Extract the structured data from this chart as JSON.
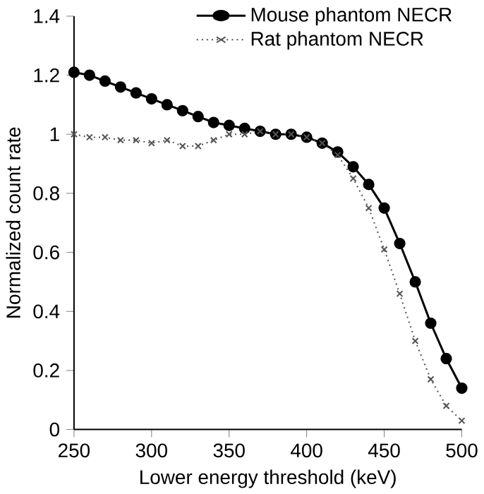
{
  "chart_data": {
    "type": "line",
    "xlabel": "Lower energy threshold (keV)",
    "ylabel": "Normalized count rate",
    "x": [
      250,
      260,
      270,
      280,
      290,
      300,
      310,
      320,
      330,
      340,
      350,
      360,
      370,
      380,
      390,
      400,
      410,
      420,
      430,
      440,
      450,
      460,
      470,
      480,
      490,
      500
    ],
    "series": [
      {
        "name": "Mouse phantom NECR",
        "color": "#000000",
        "marker": "circle",
        "line_style": "solid",
        "values": [
          1.21,
          1.2,
          1.18,
          1.16,
          1.14,
          1.12,
          1.1,
          1.08,
          1.06,
          1.04,
          1.03,
          1.02,
          1.01,
          1.0,
          1.0,
          0.99,
          0.97,
          0.94,
          0.89,
          0.83,
          0.75,
          0.63,
          0.5,
          0.36,
          0.24,
          0.14
        ]
      },
      {
        "name": "Rat phantom NECR",
        "color": "#555555",
        "marker": "cross",
        "line_style": "dotted",
        "values": [
          1.0,
          0.99,
          0.99,
          0.98,
          0.98,
          0.97,
          0.98,
          0.96,
          0.96,
          0.98,
          1.0,
          1.0,
          1.01,
          1.0,
          1.0,
          0.99,
          0.97,
          0.93,
          0.85,
          0.75,
          0.61,
          0.46,
          0.3,
          0.17,
          0.08,
          0.03
        ]
      }
    ],
    "xlim": [
      250,
      500
    ],
    "xticks": [
      250,
      300,
      350,
      400,
      450,
      500
    ],
    "ylim": [
      0,
      1.4
    ],
    "yticks": [
      0,
      0.2,
      0.4,
      0.6,
      0.8,
      1,
      1.2,
      1.4
    ],
    "grid": false,
    "legend": "top right"
  }
}
